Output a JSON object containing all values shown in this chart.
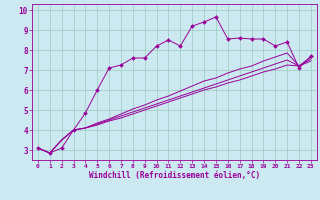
{
  "title": "",
  "xlabel": "Windchill (Refroidissement éolien,°C)",
  "bg_color": "#cce8f0",
  "line_color": "#990099",
  "grid_color": "#99ccbb",
  "xlim": [
    -0.5,
    23.5
  ],
  "ylim": [
    2.5,
    10.3
  ],
  "xticks": [
    0,
    1,
    2,
    3,
    4,
    5,
    6,
    7,
    8,
    9,
    10,
    11,
    12,
    13,
    14,
    15,
    16,
    17,
    18,
    19,
    20,
    21,
    22,
    23
  ],
  "yticks": [
    3,
    4,
    5,
    6,
    7,
    8,
    9,
    10
  ],
  "series": [
    [
      3.1,
      2.85,
      3.1,
      4.0,
      4.85,
      6.0,
      7.1,
      7.25,
      7.6,
      7.6,
      8.2,
      8.5,
      8.2,
      9.2,
      9.4,
      9.65,
      8.55,
      8.6,
      8.55,
      8.55,
      8.2,
      8.4,
      7.1,
      7.7
    ],
    [
      3.1,
      2.85,
      3.5,
      4.0,
      4.1,
      4.35,
      4.55,
      4.8,
      5.05,
      5.25,
      5.5,
      5.7,
      5.95,
      6.2,
      6.45,
      6.6,
      6.85,
      7.05,
      7.2,
      7.45,
      7.65,
      7.85,
      7.2,
      7.65
    ],
    [
      3.1,
      2.85,
      3.5,
      4.0,
      4.1,
      4.3,
      4.5,
      4.7,
      4.9,
      5.1,
      5.3,
      5.5,
      5.7,
      5.9,
      6.1,
      6.3,
      6.5,
      6.7,
      6.9,
      7.1,
      7.3,
      7.5,
      7.2,
      7.55
    ],
    [
      3.1,
      2.85,
      3.5,
      4.0,
      4.1,
      4.25,
      4.45,
      4.6,
      4.8,
      5.0,
      5.2,
      5.4,
      5.6,
      5.8,
      6.0,
      6.15,
      6.35,
      6.5,
      6.7,
      6.9,
      7.05,
      7.25,
      7.2,
      7.45
    ]
  ]
}
